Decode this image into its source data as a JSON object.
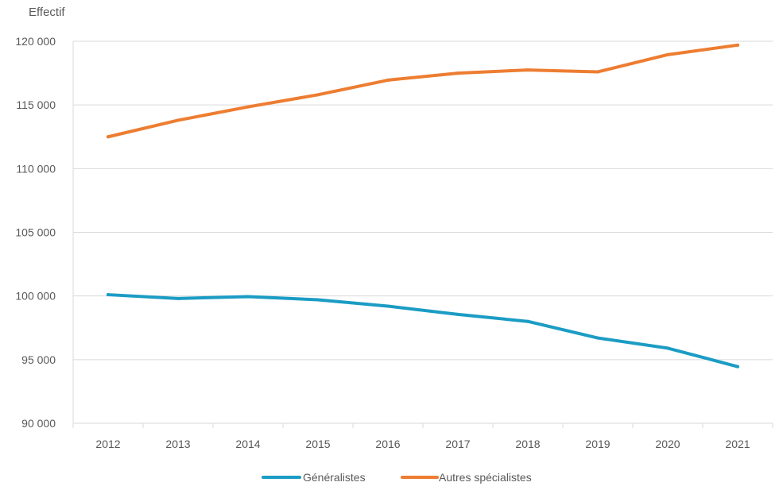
{
  "chart_data": {
    "type": "line",
    "ylabel": "Effectif",
    "xlabel": "",
    "title": "",
    "x": [
      "2012",
      "2013",
      "2014",
      "2015",
      "2016",
      "2017",
      "2018",
      "2019",
      "2020",
      "2021"
    ],
    "ylim": [
      90000,
      120000
    ],
    "yticks": [
      90000,
      95000,
      100000,
      105000,
      110000,
      115000,
      120000
    ],
    "ytick_labels": [
      "90 000",
      "95 000",
      "100 000",
      "105 000",
      "110 000",
      "115 000",
      "120 000"
    ],
    "grid": true,
    "legend_position": "bottom",
    "series": [
      {
        "name": "Généralistes",
        "color": "#1b9cc4",
        "values": [
          100100,
          99800,
          99950,
          99700,
          99200,
          98550,
          98000,
          96700,
          95900,
          94450
        ]
      },
      {
        "name": "Autres spécialistes",
        "color": "#ed7d31",
        "values": [
          112500,
          113800,
          114850,
          115800,
          116950,
          117500,
          117750,
          117600,
          118950,
          119700
        ]
      }
    ]
  }
}
